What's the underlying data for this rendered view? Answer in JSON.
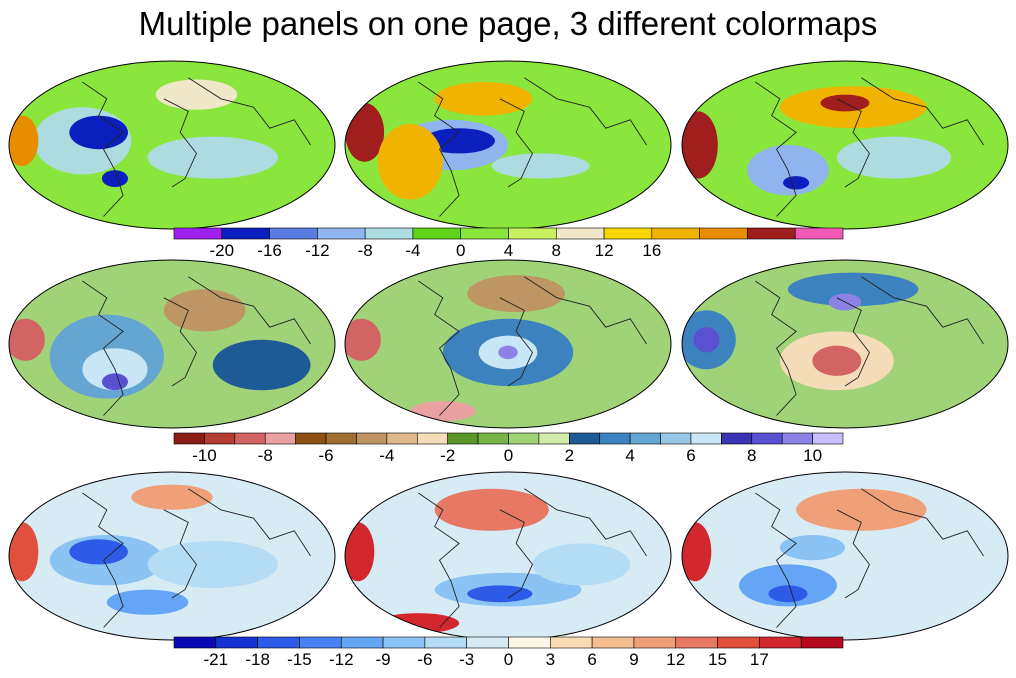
{
  "title": "Multiple panels on one page, 3 different colormaps",
  "panel_rows": [
    {
      "colormap": "rainbow",
      "colors": [
        "#a020f0",
        "#0a1fbe",
        "#5a7be0",
        "#8fb4ee",
        "#acdce0",
        "#5fd418",
        "#8ae63c",
        "#c8f060",
        "#f0e6c8",
        "#f6d800",
        "#f0b400",
        "#e88c00",
        "#a01e1e",
        "#f05ab4"
      ],
      "labels": [
        "-20",
        "-16",
        "-12",
        "-8",
        "-4",
        "0",
        "4",
        "8",
        "12",
        "16"
      ],
      "label_start_edge": 1,
      "label_edge_step": 1
    },
    {
      "colormap": "brown-green-blue-purple",
      "colors": [
        "#8c1c14",
        "#b43c32",
        "#d26464",
        "#e8a0a0",
        "#8c5014",
        "#a06e32",
        "#be9664",
        "#deb98c",
        "#f5dcb9",
        "#5a9628",
        "#78b446",
        "#a0d278",
        "#d2ebaa",
        "#1e5a96",
        "#3c82be",
        "#64a5d2",
        "#96c8e6",
        "#c8e6f5",
        "#3c32b4",
        "#5a50d2",
        "#8c82e6",
        "#c8beff"
      ],
      "labels": [
        "-10",
        "-8",
        "-6",
        "-4",
        "-2",
        "0",
        "2",
        "4",
        "6",
        "8",
        "10"
      ],
      "label_start_edge": 1,
      "label_edge_step": 2
    },
    {
      "colormap": "blue-white-red",
      "colors": [
        "#0a0ab4",
        "#1432d2",
        "#2d5ae6",
        "#4682f0",
        "#64a5f5",
        "#8cc3f5",
        "#b4dcf5",
        "#d7ebf5",
        "#fff5e6",
        "#fadcb4",
        "#f5be91",
        "#f0a078",
        "#e67864",
        "#e1503c",
        "#d2282d",
        "#b40a1e"
      ],
      "labels": [
        "-21",
        "-18",
        "-15",
        "-12",
        "-9",
        "-6",
        "-3",
        "0",
        "3",
        "6",
        "9",
        "12",
        "15",
        "17"
      ],
      "label_start_edge": 1,
      "label_edge_step": 1
    }
  ]
}
